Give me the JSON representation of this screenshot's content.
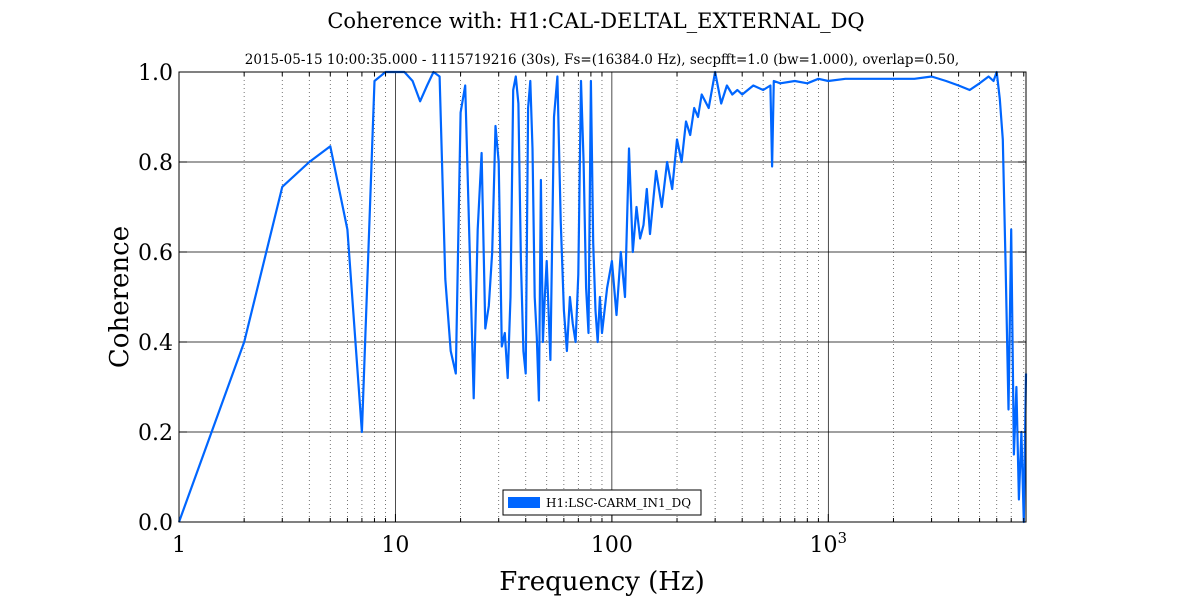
{
  "chart_data": {
    "type": "line",
    "title": "Coherence with: H1:CAL-DELTAL_EXTERNAL_DQ",
    "subtitle": "2015-05-15 10:00:35.000 - 1115719216 (30s), Fs=(16384.0 Hz), secpfft=1.0 (bw=1.000), overlap=0.50,",
    "xlabel": "Frequency (Hz)",
    "ylabel": "Coherence",
    "xscale": "log",
    "xlim": [
      1,
      8192
    ],
    "ylim": [
      0.0,
      1.0
    ],
    "xticks": [
      {
        "value": 1,
        "label": "1",
        "sup": ""
      },
      {
        "value": 10,
        "label": "10",
        "sup": ""
      },
      {
        "value": 100,
        "label": "100",
        "sup": ""
      },
      {
        "value": 1000,
        "label": "10",
        "sup": "3"
      }
    ],
    "yticks": [
      {
        "value": 0.0,
        "label": "0.0"
      },
      {
        "value": 0.2,
        "label": "0.2"
      },
      {
        "value": 0.4,
        "label": "0.4"
      },
      {
        "value": 0.6,
        "label": "0.6"
      },
      {
        "value": 0.8,
        "label": "0.8"
      },
      {
        "value": 1.0,
        "label": "1.0"
      }
    ],
    "grid": true,
    "legend_position": "bottom-center",
    "series": [
      {
        "name": "H1:LSC-CARM_IN1_DQ",
        "color": "#0066ff",
        "x": [
          1,
          2,
          3,
          4,
          5,
          6,
          7,
          8,
          9,
          10,
          11,
          12,
          13,
          14,
          15,
          16,
          17,
          18,
          19,
          20,
          21,
          22,
          23,
          24,
          25,
          26,
          27,
          28,
          29,
          30,
          31,
          32,
          33,
          34,
          35,
          36,
          37,
          38,
          39,
          40,
          41,
          42,
          43,
          44,
          45,
          46,
          47,
          48,
          49,
          50,
          52,
          54,
          56,
          58,
          60,
          62,
          64,
          66,
          68,
          70,
          72,
          74,
          76,
          78,
          80,
          82,
          84,
          86,
          88,
          90,
          95,
          100,
          105,
          110,
          115,
          120,
          125,
          130,
          135,
          140,
          145,
          150,
          160,
          170,
          180,
          190,
          200,
          210,
          220,
          230,
          240,
          250,
          260,
          280,
          300,
          320,
          340,
          360,
          380,
          400,
          450,
          500,
          540,
          550,
          560,
          600,
          700,
          800,
          900,
          1000,
          1200,
          1500,
          2000,
          2500,
          3000,
          3500,
          4000,
          4500,
          5000,
          5500,
          5800,
          6000,
          6200,
          6400,
          6600,
          6800,
          7000,
          7200,
          7400,
          7600,
          7800,
          8000,
          8192
        ],
        "y": [
          0.0,
          0.4,
          0.745,
          0.8,
          0.835,
          0.65,
          0.2,
          0.98,
          1.0,
          1.0,
          1.0,
          0.98,
          0.935,
          0.97,
          1.0,
          0.99,
          0.54,
          0.38,
          0.33,
          0.91,
          0.97,
          0.62,
          0.275,
          0.65,
          0.82,
          0.43,
          0.48,
          0.6,
          0.88,
          0.8,
          0.39,
          0.42,
          0.32,
          0.5,
          0.96,
          0.99,
          0.93,
          0.58,
          0.38,
          0.33,
          0.92,
          0.98,
          0.83,
          0.5,
          0.41,
          0.27,
          0.76,
          0.4,
          0.5,
          0.58,
          0.36,
          0.9,
          0.99,
          0.67,
          0.47,
          0.38,
          0.5,
          0.44,
          0.4,
          0.55,
          0.98,
          0.8,
          0.52,
          0.42,
          0.98,
          0.62,
          0.47,
          0.4,
          0.5,
          0.42,
          0.52,
          0.58,
          0.46,
          0.6,
          0.5,
          0.83,
          0.6,
          0.7,
          0.63,
          0.66,
          0.74,
          0.64,
          0.78,
          0.7,
          0.8,
          0.74,
          0.85,
          0.8,
          0.89,
          0.86,
          0.92,
          0.9,
          0.95,
          0.92,
          1.0,
          0.93,
          0.97,
          0.95,
          0.96,
          0.95,
          0.97,
          0.96,
          0.97,
          0.79,
          0.98,
          0.975,
          0.98,
          0.975,
          0.985,
          0.98,
          0.985,
          0.985,
          0.985,
          0.985,
          0.99,
          0.98,
          0.97,
          0.96,
          0.975,
          0.99,
          0.98,
          1.0,
          0.94,
          0.85,
          0.56,
          0.25,
          0.65,
          0.15,
          0.3,
          0.05,
          0.2,
          0.0,
          0.33
        ]
      }
    ]
  }
}
